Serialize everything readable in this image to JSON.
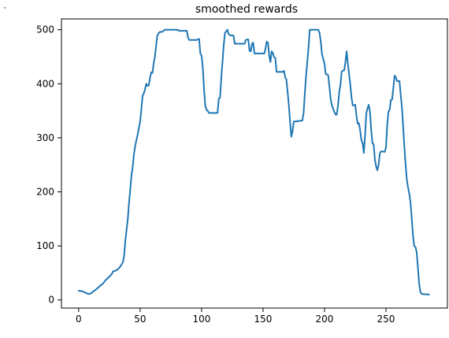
{
  "corner_icon": "chevron-down-icon",
  "corner_glyph": "⌄",
  "chart_data": {
    "type": "line",
    "title": "smoothed rewards",
    "xlabel": "",
    "ylabel": "",
    "xlim": [
      -14,
      300
    ],
    "ylim": [
      -15,
      520
    ],
    "x_ticks": [
      0,
      50,
      100,
      150,
      200,
      250
    ],
    "y_ticks": [
      0,
      100,
      200,
      300,
      400,
      500
    ],
    "grid": false,
    "legend": "none",
    "line_color": "#1f77b4",
    "series": [
      {
        "points": [
          [
            0,
            17
          ],
          [
            3,
            16
          ],
          [
            6,
            13
          ],
          [
            8,
            11
          ],
          [
            10,
            12
          ],
          [
            12,
            16
          ],
          [
            14,
            19
          ],
          [
            17,
            25
          ],
          [
            20,
            31
          ],
          [
            22,
            37
          ],
          [
            25,
            43
          ],
          [
            27,
            48
          ],
          [
            28,
            53
          ],
          [
            30,
            54
          ],
          [
            32,
            57
          ],
          [
            34,
            62
          ],
          [
            36,
            70
          ],
          [
            37,
            82
          ],
          [
            38,
            110
          ],
          [
            39,
            130
          ],
          [
            40,
            150
          ],
          [
            41,
            180
          ],
          [
            42,
            205
          ],
          [
            43,
            232
          ],
          [
            44,
            246
          ],
          [
            45,
            270
          ],
          [
            46,
            285
          ],
          [
            47,
            296
          ],
          [
            48,
            306
          ],
          [
            49,
            318
          ],
          [
            50,
            330
          ],
          [
            51,
            352
          ],
          [
            52,
            378
          ],
          [
            53,
            382
          ],
          [
            54,
            390
          ],
          [
            55,
            400
          ],
          [
            56,
            396
          ],
          [
            57,
            397
          ],
          [
            58,
            410
          ],
          [
            59,
            421
          ],
          [
            60,
            420
          ],
          [
            61,
            437
          ],
          [
            62,
            450
          ],
          [
            63,
            470
          ],
          [
            64,
            489
          ],
          [
            65,
            493
          ],
          [
            66,
            496
          ],
          [
            68,
            496
          ],
          [
            70,
            500
          ],
          [
            80,
            500
          ],
          [
            82,
            498
          ],
          [
            88,
            498
          ],
          [
            89,
            485
          ],
          [
            90,
            481
          ],
          [
            96,
            481
          ],
          [
            98,
            483
          ],
          [
            99,
            456
          ],
          [
            100,
            452
          ],
          [
            101,
            430
          ],
          [
            102,
            390
          ],
          [
            103,
            360
          ],
          [
            104,
            352
          ],
          [
            105,
            350
          ],
          [
            106,
            346
          ],
          [
            113,
            346
          ],
          [
            114,
            373
          ],
          [
            115,
            374
          ],
          [
            116,
            410
          ],
          [
            117,
            440
          ],
          [
            118,
            471
          ],
          [
            119,
            494
          ],
          [
            120,
            497
          ],
          [
            121,
            500
          ],
          [
            122,
            492
          ],
          [
            123,
            490
          ],
          [
            126,
            489
          ],
          [
            127,
            474
          ],
          [
            135,
            474
          ],
          [
            136,
            481
          ],
          [
            137,
            482
          ],
          [
            138,
            482
          ],
          [
            139,
            461
          ],
          [
            140,
            460
          ],
          [
            141,
            474
          ],
          [
            142,
            476
          ],
          [
            143,
            456
          ],
          [
            151,
            456
          ],
          [
            152,
            465
          ],
          [
            153,
            478
          ],
          [
            154,
            476
          ],
          [
            155,
            452
          ],
          [
            156,
            440
          ],
          [
            157,
            460
          ],
          [
            158,
            457
          ],
          [
            159,
            449
          ],
          [
            160,
            448
          ],
          [
            161,
            422
          ],
          [
            166,
            422
          ],
          [
            167,
            424
          ],
          [
            168,
            412
          ],
          [
            169,
            408
          ],
          [
            170,
            385
          ],
          [
            171,
            360
          ],
          [
            172,
            330
          ],
          [
            173,
            302
          ],
          [
            174,
            312
          ],
          [
            175,
            330
          ],
          [
            182,
            332
          ],
          [
            183,
            346
          ],
          [
            184,
            382
          ],
          [
            185,
            414
          ],
          [
            186,
            440
          ],
          [
            187,
            467
          ],
          [
            188,
            500
          ],
          [
            195,
            500
          ],
          [
            196,
            494
          ],
          [
            197,
            477
          ],
          [
            198,
            454
          ],
          [
            200,
            437
          ],
          [
            201,
            418
          ],
          [
            203,
            416
          ],
          [
            204,
            395
          ],
          [
            205,
            372
          ],
          [
            206,
            360
          ],
          [
            208,
            348
          ],
          [
            209,
            343
          ],
          [
            210,
            343
          ],
          [
            211,
            360
          ],
          [
            212,
            385
          ],
          [
            213,
            398
          ],
          [
            214,
            423
          ],
          [
            215,
            424
          ],
          [
            216,
            425
          ],
          [
            217,
            440
          ],
          [
            218,
            460
          ],
          [
            219,
            437
          ],
          [
            220,
            418
          ],
          [
            221,
            398
          ],
          [
            222,
            374
          ],
          [
            223,
            360
          ],
          [
            225,
            361
          ],
          [
            226,
            341
          ],
          [
            227,
            326
          ],
          [
            228,
            327
          ],
          [
            229,
            314
          ],
          [
            230,
            296
          ],
          [
            231,
            290
          ],
          [
            232,
            272
          ],
          [
            233,
            304
          ],
          [
            234,
            345
          ],
          [
            235,
            355
          ],
          [
            236,
            361
          ],
          [
            237,
            348
          ],
          [
            238,
            314
          ],
          [
            239,
            290
          ],
          [
            240,
            288
          ],
          [
            241,
            260
          ],
          [
            242,
            247
          ],
          [
            243,
            240
          ],
          [
            244,
            250
          ],
          [
            245,
            271
          ],
          [
            246,
            275
          ],
          [
            249,
            274
          ],
          [
            250,
            282
          ],
          [
            251,
            323
          ],
          [
            252,
            348
          ],
          [
            253,
            352
          ],
          [
            254,
            370
          ],
          [
            255,
            371
          ],
          [
            256,
            392
          ],
          [
            257,
            415
          ],
          [
            258,
            412
          ],
          [
            259,
            405
          ],
          [
            261,
            405
          ],
          [
            262,
            380
          ],
          [
            263,
            356
          ],
          [
            264,
            320
          ],
          [
            265,
            282
          ],
          [
            266,
            250
          ],
          [
            267,
            222
          ],
          [
            268,
            208
          ],
          [
            269,
            196
          ],
          [
            270,
            180
          ],
          [
            271,
            150
          ],
          [
            272,
            118
          ],
          [
            273,
            100
          ],
          [
            274,
            98
          ],
          [
            275,
            88
          ],
          [
            276,
            60
          ],
          [
            277,
            30
          ],
          [
            278,
            15
          ],
          [
            279,
            11
          ],
          [
            285,
            10
          ]
        ]
      }
    ]
  }
}
